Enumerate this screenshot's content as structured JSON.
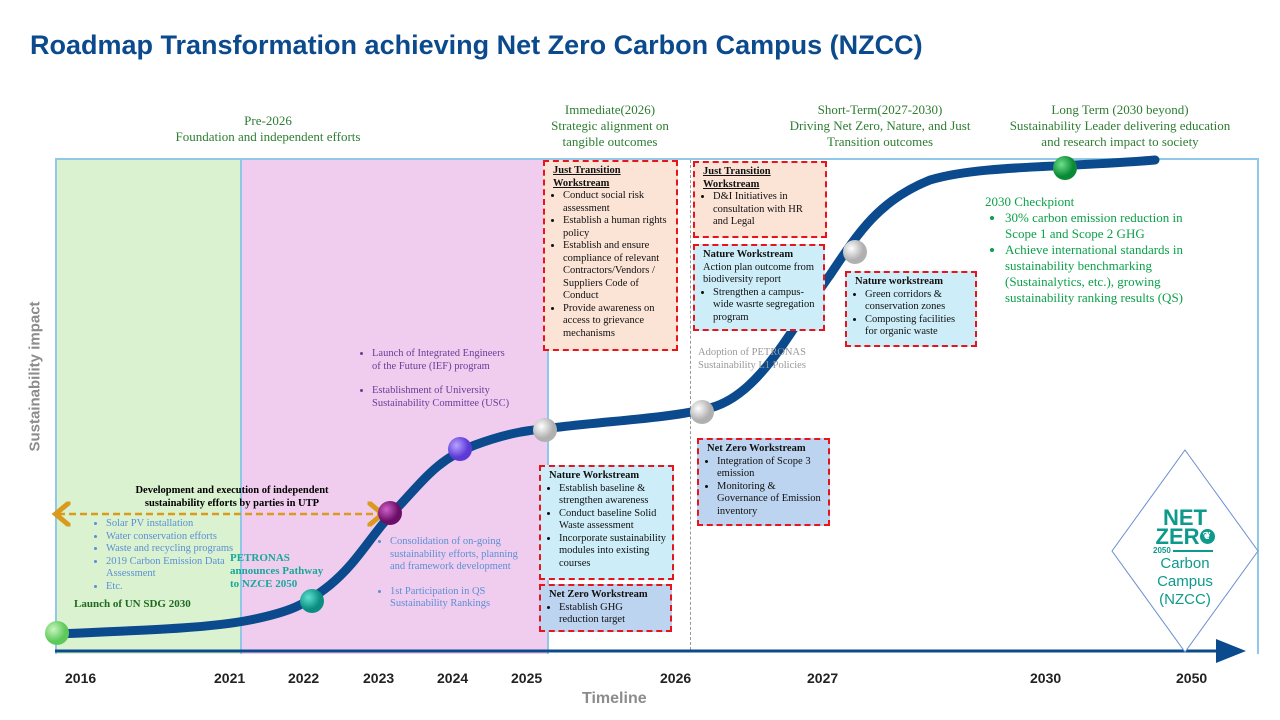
{
  "title": "Roadmap Transformation achieving Net Zero Carbon Campus (NZCC)",
  "phases": [
    {
      "line1": "Pre-2026",
      "line2": "Foundation and independent efforts"
    },
    {
      "line1": "Immediate(2026)",
      "line2": "Strategic alignment on",
      "line3": "tangible outcomes"
    },
    {
      "line1": "Short-Term(2027-2030)",
      "line2": "Driving Net Zero, Nature, and Just",
      "line3": "Transition outcomes"
    },
    {
      "line1": "Long Term (2030 beyond)",
      "line2": "Sustainability Leader delivering education",
      "line3": "and research impact to society"
    }
  ],
  "axes": {
    "y_label": "Sustainability impact",
    "x_label": "Timeline"
  },
  "years": [
    "2016",
    "2021",
    "2022",
    "2023",
    "2024",
    "2025",
    "2026",
    "2027",
    "2030",
    "2050"
  ],
  "pre2026": {
    "arrow_label_1": "Development and execution of independent",
    "arrow_label_2": "sustainability efforts by parties in UTP",
    "efforts": [
      "Solar PV installation",
      "Water conservation efforts",
      "Waste and recycling programs",
      "2019 Carbon Emission Data Assessment",
      "Etc."
    ],
    "un_sdg": "Launch of UN SDG 2030",
    "petronas_1": "PETRONAS",
    "petronas_2": "announces Pathway",
    "petronas_3": "to NZCE 2050",
    "y2023_items": [
      "Consolidation of on-going sustainability efforts, planning and framework development",
      "1st Participation in QS Sustainability Rankings"
    ],
    "y2024_items": [
      "Launch of Integrated Engineers of the Future (IEF) program",
      "Establishment of University Sustainability Committee (USC)"
    ]
  },
  "immediate": {
    "just_transition": {
      "heading_1": "Just Transition",
      "heading_2": "Workstream",
      "items": [
        "Conduct social risk assessment",
        "Establish a human rights policy",
        "Establish and ensure compliance of relevant Contractors/Vendors / Suppliers Code of Conduct",
        "Provide awareness on access to grievance mechanisms"
      ]
    },
    "nature": {
      "heading": "Nature Workstream",
      "items": [
        "Establish baseline & strengthen awareness",
        "Conduct baseline Solid Waste assessment",
        "Incorporate sustainability modules into existing courses"
      ]
    },
    "net_zero": {
      "heading": "Net Zero Workstream",
      "items": [
        "Establish GHG reduction target"
      ]
    }
  },
  "short_term": {
    "just_transition": {
      "heading_1": "Just Transition",
      "heading_2": "Workstream",
      "items": [
        "D&I Initiatives in consultation with HR and Legal"
      ]
    },
    "nature": {
      "heading": "Nature Workstream",
      "lead": "Action plan outcome from biodiversity report",
      "items": [
        "Strengthen a campus-wide wasrte segregation program"
      ]
    },
    "adoption_1": "Adoption of PETRONAS",
    "adoption_2": "Sustainability L1 Policies",
    "net_zero": {
      "heading": "Net Zero Workstream",
      "items": [
        "Integration of Scope 3 emission",
        "Monitoring & Governance of Emission inventory"
      ]
    },
    "nature_2027": {
      "heading": "Nature workstream",
      "items": [
        "Green corridors & conservation zones",
        "Composting facilities for organic waste"
      ]
    }
  },
  "checkpoint": {
    "heading": "2030 Checkpiont",
    "items": [
      "30% carbon emission reduction in Scope 1 and Scope 2 GHG",
      "Achieve international standards in sustainability benchmarking (Sustainalytics, etc.), growing sustainability ranking results (QS)"
    ]
  },
  "logo": {
    "net": "NET",
    "zero": "ZER",
    "year": "2050",
    "line1": "Carbon",
    "line2": "Campus",
    "line3": "(NZCC)"
  },
  "colors": {
    "title": "#0b4a8c",
    "curve": "#0b4a8c",
    "phase_text": "#2e7d32",
    "box_border": "#e8141b",
    "checkpoint": "#0ca04a",
    "logo": "#0d9a8c"
  }
}
